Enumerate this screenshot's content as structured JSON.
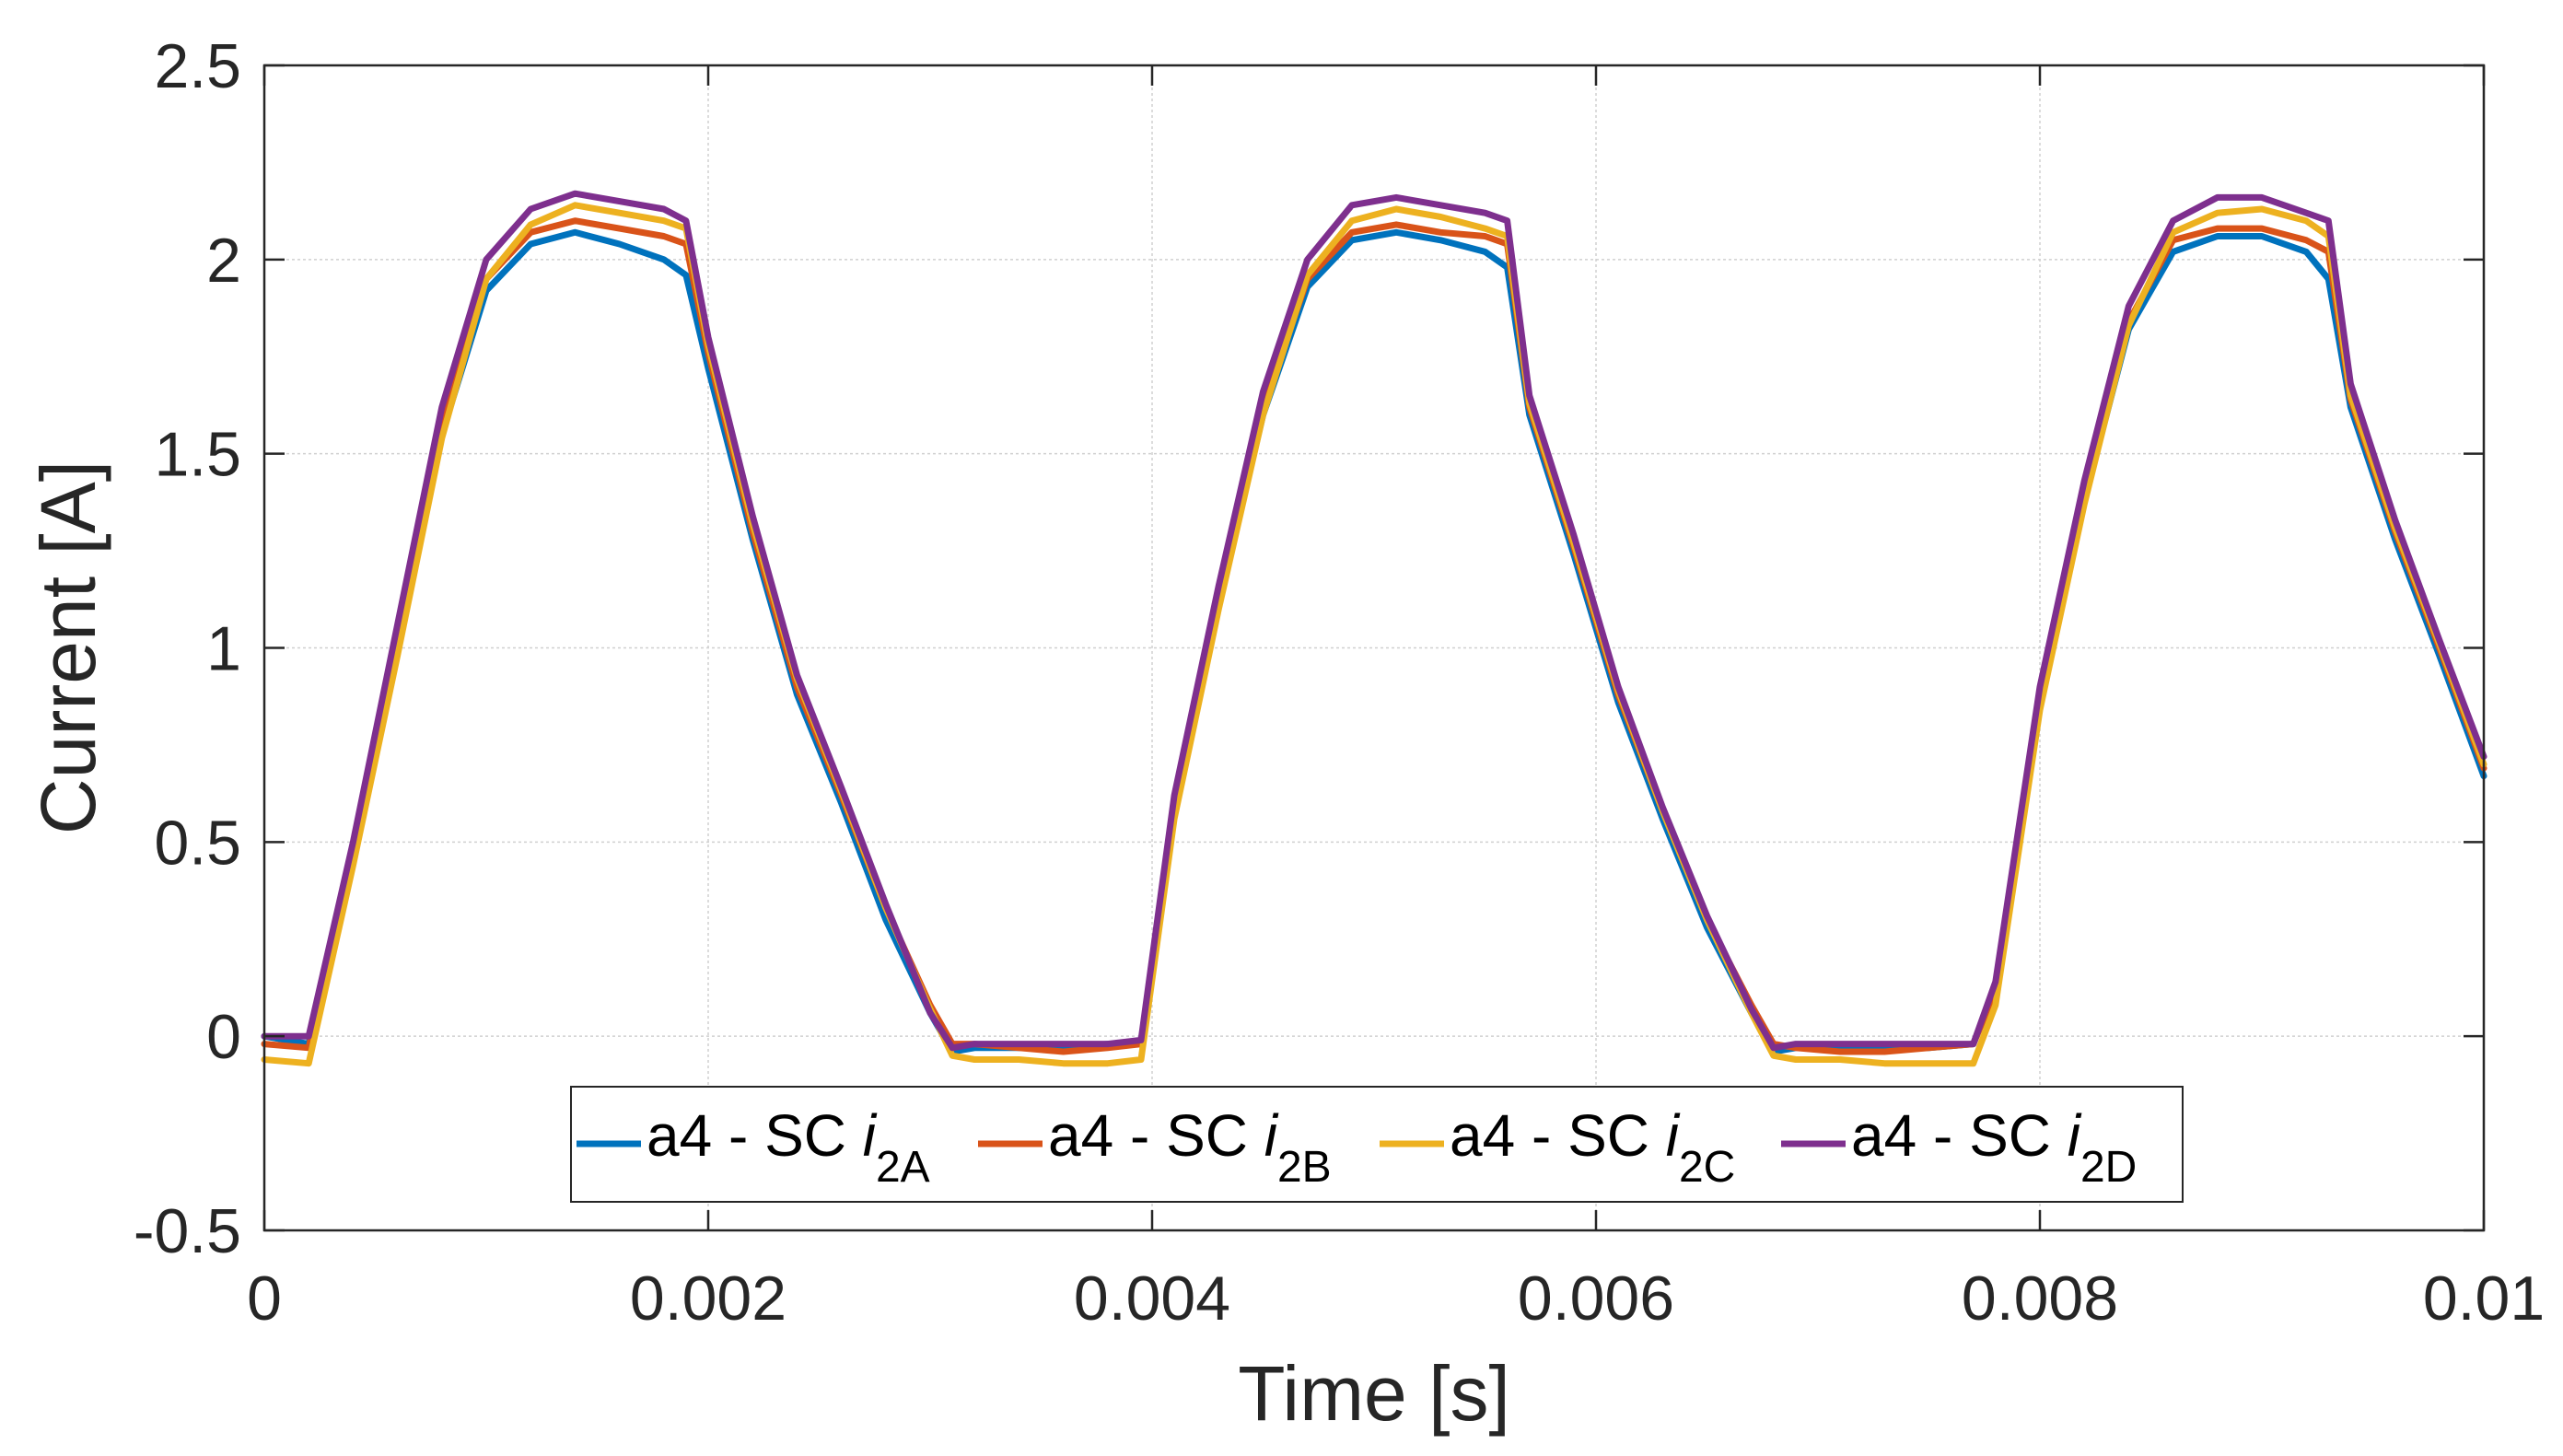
{
  "chart_data": {
    "type": "line",
    "title": "",
    "xlabel": "Time  [s]",
    "ylabel": "Current [A]",
    "xlim": [
      0,
      0.01
    ],
    "ylim": [
      -0.5,
      2.5
    ],
    "xticks": [
      0,
      0.002,
      0.004,
      0.006,
      0.008,
      0.01
    ],
    "xtick_labels": [
      "0",
      "0.002",
      "0.004",
      "0.006",
      "0.008",
      "0.01"
    ],
    "yticks": [
      -0.5,
      0,
      0.5,
      1,
      1.5,
      2,
      2.5
    ],
    "ytick_labels": [
      "-0.5",
      "0",
      "0.5",
      "1",
      "1.5",
      "2",
      "2.5"
    ],
    "grid": true,
    "legend_position": "bottom-center",
    "x": [
      0,
      0.0002,
      0.0004,
      0.0006,
      0.0008,
      0.001,
      0.0012,
      0.0014,
      0.0016,
      0.0018,
      0.0019,
      0.002,
      0.0022,
      0.0024,
      0.0026,
      0.0028,
      0.003,
      0.0031,
      0.0032,
      0.0034,
      0.0036,
      0.0038,
      0.00395,
      0.0041,
      0.0043,
      0.0045,
      0.0047,
      0.0049,
      0.0051,
      0.0053,
      0.0055,
      0.0056,
      0.0057,
      0.0059,
      0.0061,
      0.0063,
      0.0065,
      0.0067,
      0.0068,
      0.0069,
      0.0071,
      0.0073,
      0.0075,
      0.0077,
      0.0078,
      0.008,
      0.0082,
      0.0084,
      0.0086,
      0.0088,
      0.009,
      0.0092,
      0.0093,
      0.0094,
      0.0096,
      0.0098,
      0.01
    ],
    "series": [
      {
        "name": "a4 - SC i2A",
        "legend_main": "a4 - SC ",
        "legend_symbol": "i",
        "legend_subscript": "2A",
        "color": "#0072BD",
        "values": [
          0,
          -0.02,
          0.48,
          1.02,
          1.55,
          1.92,
          2.04,
          2.07,
          2.04,
          2.0,
          1.96,
          1.72,
          1.28,
          0.88,
          0.6,
          0.3,
          0.06,
          -0.04,
          -0.03,
          -0.03,
          -0.03,
          -0.02,
          -0.02,
          0.58,
          1.12,
          1.6,
          1.93,
          2.05,
          2.07,
          2.05,
          2.02,
          1.98,
          1.6,
          1.24,
          0.86,
          0.56,
          0.28,
          0.06,
          -0.04,
          -0.03,
          -0.03,
          -0.03,
          -0.03,
          -0.02,
          0.12,
          0.86,
          1.38,
          1.82,
          2.02,
          2.06,
          2.06,
          2.02,
          1.95,
          1.62,
          1.28,
          0.98,
          0.67
        ]
      },
      {
        "name": "a4 - SC i2B",
        "legend_main": "a4 - SC ",
        "legend_symbol": "i",
        "legend_subscript": "2B",
        "color": "#D95319",
        "values": [
          -0.02,
          -0.03,
          0.48,
          1.02,
          1.58,
          1.95,
          2.07,
          2.1,
          2.08,
          2.06,
          2.04,
          1.76,
          1.3,
          0.9,
          0.62,
          0.33,
          0.08,
          -0.02,
          -0.02,
          -0.03,
          -0.04,
          -0.03,
          -0.02,
          0.6,
          1.14,
          1.62,
          1.95,
          2.07,
          2.09,
          2.07,
          2.06,
          2.04,
          1.62,
          1.26,
          0.88,
          0.58,
          0.3,
          0.08,
          -0.02,
          -0.03,
          -0.04,
          -0.04,
          -0.03,
          -0.02,
          0.12,
          0.88,
          1.4,
          1.84,
          2.05,
          2.08,
          2.08,
          2.05,
          2.02,
          1.64,
          1.3,
          1.0,
          0.69
        ]
      },
      {
        "name": "a4 - SC i2C",
        "legend_main": "a4 - SC ",
        "legend_symbol": "i",
        "legend_subscript": "2C",
        "color": "#EDB120",
        "values": [
          -0.06,
          -0.07,
          0.44,
          0.98,
          1.54,
          1.95,
          2.09,
          2.14,
          2.12,
          2.1,
          2.08,
          1.78,
          1.32,
          0.92,
          0.63,
          0.33,
          0.07,
          -0.05,
          -0.06,
          -0.06,
          -0.07,
          -0.07,
          -0.06,
          0.56,
          1.1,
          1.6,
          1.96,
          2.1,
          2.13,
          2.11,
          2.08,
          2.06,
          1.63,
          1.27,
          0.89,
          0.58,
          0.3,
          0.06,
          -0.05,
          -0.06,
          -0.06,
          -0.07,
          -0.07,
          -0.07,
          0.08,
          0.84,
          1.37,
          1.83,
          2.07,
          2.12,
          2.13,
          2.1,
          2.06,
          1.65,
          1.31,
          1.01,
          0.7
        ]
      },
      {
        "name": "a4 - SC i2D",
        "legend_main": "a4 - SC ",
        "legend_symbol": "i",
        "legend_subscript": "2D",
        "color": "#7E2F8E",
        "values": [
          0,
          0,
          0.5,
          1.06,
          1.62,
          2.0,
          2.13,
          2.17,
          2.15,
          2.13,
          2.1,
          1.8,
          1.34,
          0.93,
          0.64,
          0.34,
          0.06,
          -0.03,
          -0.02,
          -0.02,
          -0.02,
          -0.02,
          -0.01,
          0.62,
          1.16,
          1.66,
          2.0,
          2.14,
          2.16,
          2.14,
          2.12,
          2.1,
          1.65,
          1.29,
          0.9,
          0.59,
          0.31,
          0.07,
          -0.03,
          -0.02,
          -0.02,
          -0.02,
          -0.02,
          -0.02,
          0.14,
          0.9,
          1.43,
          1.88,
          2.1,
          2.16,
          2.16,
          2.12,
          2.1,
          1.68,
          1.33,
          1.02,
          0.72
        ]
      }
    ]
  }
}
